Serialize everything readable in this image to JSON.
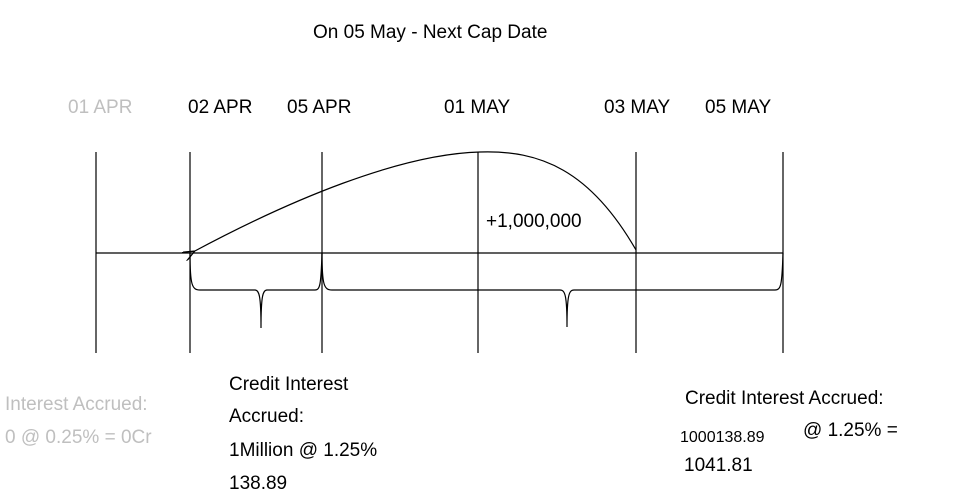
{
  "title": "On 05 May -  Next Cap Date",
  "dates": [
    {
      "label": "01 APR",
      "faded": true
    },
    {
      "label": "02 APR",
      "faded": false
    },
    {
      "label": "05 APR",
      "faded": false
    },
    {
      "label": "01 MAY",
      "faded": false
    },
    {
      "label": "03 MAY",
      "faded": false
    },
    {
      "label": "05 MAY",
      "faded": false
    }
  ],
  "transfer_label": "+1,000,000",
  "notes": {
    "faded": {
      "line1": "Interest Accrued:",
      "line2": "0 @ 0.25% = 0Cr"
    },
    "first_period": {
      "line1": "Credit Interest",
      "line2": "Accrued:",
      "line3": "1Million @ 1.25%",
      "line4": "138.89"
    },
    "second_period": {
      "line1": "Credit Interest Accrued:",
      "amount": "1000138.89",
      "rate": "@ 1.25% =",
      "result": "1041.81"
    }
  },
  "colors": {
    "line": "#000000",
    "faded_text": "#bfbfbf"
  }
}
